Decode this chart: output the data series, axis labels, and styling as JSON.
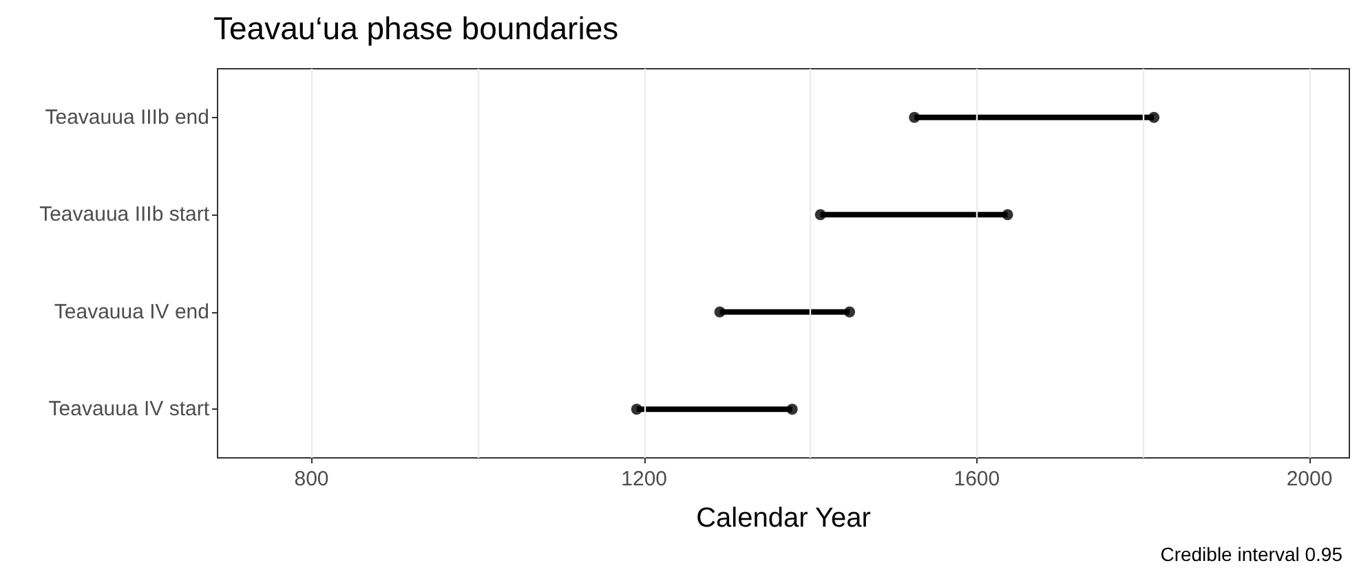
{
  "chart_data": {
    "type": "bar",
    "orientation": "horizontal",
    "title": "Teavau‘ua phase boundaries",
    "xlabel": "Calendar Year",
    "categories": [
      "Teavauua IIIb end",
      "Teavauua IIIb start",
      "Teavauua IV end",
      "Teavauua IV start"
    ],
    "series": [
      {
        "color": "#000000",
        "base": [
          1525,
          1412,
          1291,
          1191
        ],
        "values": [
          288,
          225,
          156,
          187
        ]
      },
      {
        "type": "scatter",
        "color": "#000000",
        "marker": "circle",
        "x": [
          "Teavauua IIIb end",
          "Teavauua IIIb start",
          "Teavauua IV end",
          "Teavauua IV start",
          "Teavauua IIIb end",
          "Teavauua IIIb start",
          "Teavauua IV end",
          "Teavauua IV start"
        ],
        "values": [
          1525,
          1412,
          1291,
          1191,
          1813,
          1637,
          1447,
          1378
        ]
      }
    ],
    "xlim": [
      687,
      2048
    ],
    "xticks": [
      800,
      {
        "value": 1000,
        "label": null
      },
      1200,
      {
        "value": 1400,
        "label": null
      },
      1600,
      {
        "value": 1800,
        "label": null
      },
      2000
    ],
    "grid": "x",
    "annotations": [
      "Credible interval 0.95"
    ]
  }
}
